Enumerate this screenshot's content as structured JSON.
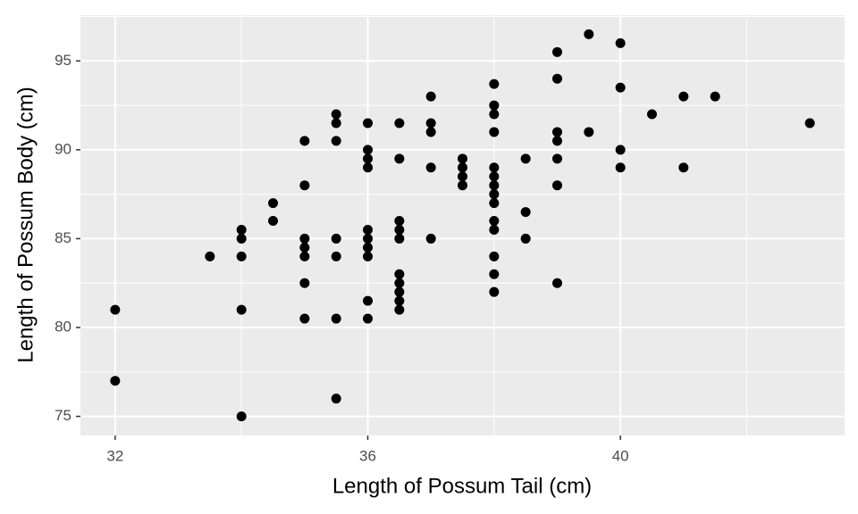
{
  "chart_data": {
    "type": "scatter",
    "x_label": "Length of Possum Tail (cm)",
    "y_label": "Length of Possum Body (cm)",
    "x": [
      32,
      32,
      33.5,
      34,
      34,
      34,
      34,
      34,
      34.5,
      34.5,
      35,
      35,
      35,
      35,
      35,
      35,
      35,
      35.5,
      35.5,
      35.5,
      35.5,
      35.5,
      35.5,
      35.5,
      36,
      36,
      36,
      36,
      36,
      36,
      36,
      36,
      36,
      36,
      36.5,
      36.5,
      36.5,
      36.5,
      36.5,
      36.5,
      36.5,
      36.5,
      36.5,
      36.5,
      37,
      37,
      37,
      37,
      37,
      37.5,
      37.5,
      37.5,
      37.5,
      38,
      38,
      38,
      38,
      38,
      38,
      38,
      38,
      38,
      38,
      38,
      38,
      38,
      38,
      38.5,
      38.5,
      38.5,
      39,
      39,
      39,
      39,
      39,
      39,
      39,
      39.5,
      39.5,
      40,
      40,
      40,
      40,
      40.5,
      41,
      41,
      41.5,
      43
    ],
    "values": [
      81,
      77,
      84,
      85.5,
      85,
      84,
      81,
      75,
      87,
      86,
      90.5,
      88,
      85,
      84.5,
      84,
      82.5,
      80.5,
      92,
      91.5,
      90.5,
      85,
      84,
      80.5,
      76,
      91.5,
      90,
      89.5,
      89,
      85.5,
      85,
      84.5,
      84,
      81.5,
      80.5,
      91.5,
      89.5,
      86,
      85.5,
      85,
      83,
      82.5,
      82,
      81.5,
      81,
      93,
      91.5,
      91,
      89,
      85,
      89.5,
      89,
      88.5,
      88,
      93.7,
      92.5,
      92,
      91,
      89,
      88.5,
      88,
      87.5,
      87,
      86,
      85.5,
      84,
      83,
      82,
      89.5,
      86.5,
      85,
      95.5,
      94,
      91,
      90.5,
      89.5,
      88,
      82.5,
      96.5,
      91,
      96,
      93.5,
      90,
      89,
      92,
      93,
      89,
      93,
      91.5
    ],
    "color": "#000000",
    "xlim": [
      31.45,
      43.55
    ],
    "xticks": [
      32,
      36,
      40
    ],
    "ylim": [
      73.925,
      97.575
    ],
    "yticks": [
      75,
      80,
      85,
      90,
      95
    ],
    "grid": true
  }
}
